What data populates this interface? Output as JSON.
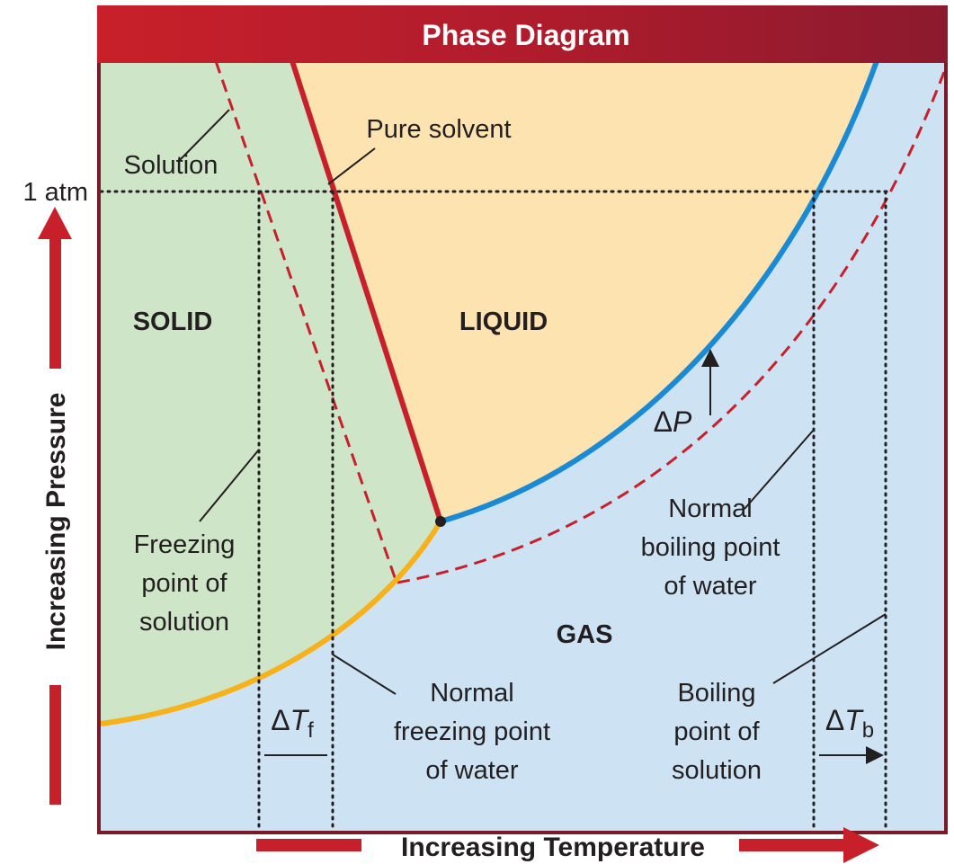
{
  "title": "Phase Diagram",
  "axes": {
    "y": "Increasing Pressure",
    "x": "Increasing Temperature",
    "pressure_mark": "1 atm"
  },
  "regions": {
    "solid": "SOLID",
    "liquid": "LIQUID",
    "gas": "GAS"
  },
  "labels": {
    "solution": "Solution",
    "pure_solvent": "Pure solvent",
    "delta_p": {
      "symbol": "Δ",
      "var": "P"
    },
    "normal_boiling": [
      "Normal",
      "boiling point",
      "of water"
    ],
    "freezing_solution": [
      "Freezing",
      "point of",
      "solution"
    ],
    "normal_freezing": [
      "Normal",
      "freezing point",
      "of water"
    ],
    "boiling_solution": [
      "Boiling",
      "point of",
      "solution"
    ],
    "delta_tf": {
      "symbol": "Δ",
      "var": "T",
      "sub": "f"
    },
    "delta_tb": {
      "symbol": "Δ",
      "var": "T",
      "sub": "b"
    }
  }
}
